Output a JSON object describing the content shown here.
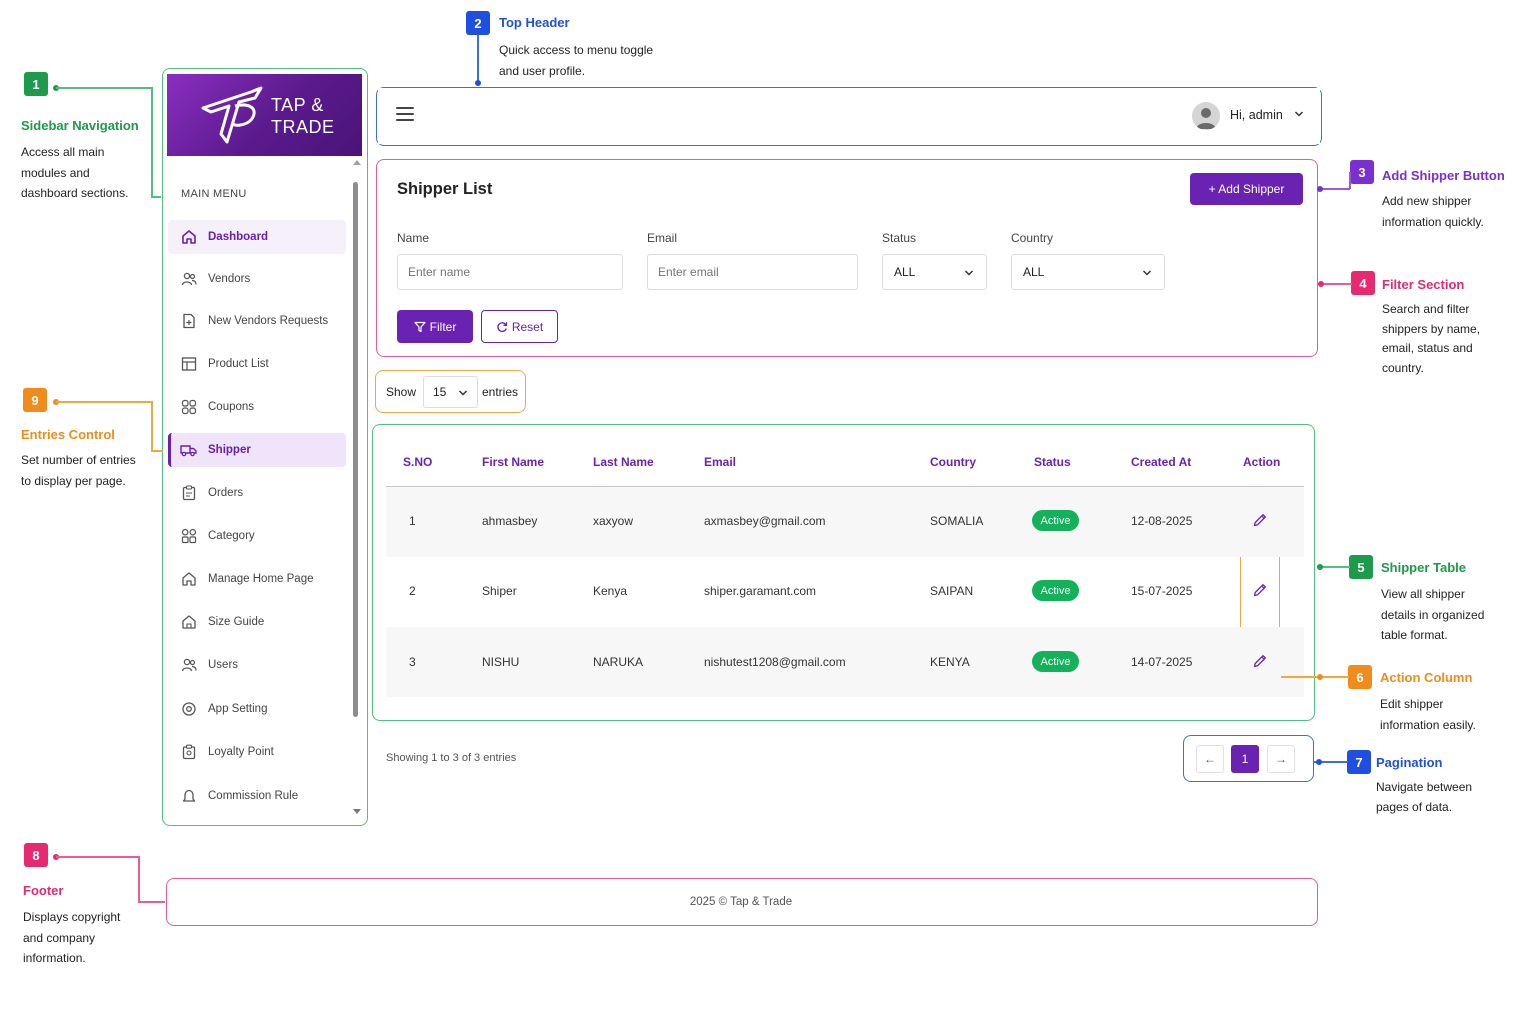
{
  "annotations": [
    {
      "num": "1",
      "title": "Sidebar Navigation",
      "desc": [
        "Access all main",
        "modules and",
        "dashboard sections."
      ],
      "color": "#1e9a4b"
    },
    {
      "num": "2",
      "title": "Top Header",
      "desc": [
        "Quick access to menu toggle",
        "and user profile."
      ],
      "color": "#1f4fe0"
    },
    {
      "num": "3",
      "title": "Add Shipper Button",
      "desc": [
        "Add new shipper",
        "information quickly."
      ],
      "color": "#7a2fd0"
    },
    {
      "num": "4",
      "title": "Filter Section",
      "desc": [
        "Search and filter",
        "shippers by name,",
        "email, status and",
        "country."
      ],
      "color": "#e8286f"
    },
    {
      "num": "5",
      "title": "Shipper Table",
      "desc": [
        "View all shipper",
        "details in organized",
        "table format."
      ],
      "color": "#1e9a4b"
    },
    {
      "num": "6",
      "title": "Action Column",
      "desc": [
        "Edit shipper",
        "information easily."
      ],
      "color": "#f08c1c"
    },
    {
      "num": "7",
      "title": "Pagination",
      "desc": [
        "Navigate between",
        "pages of data."
      ],
      "color": "#1f4fe0"
    },
    {
      "num": "8",
      "title": "Footer",
      "desc": [
        "Displays copyright",
        "and company",
        "information."
      ],
      "color": "#e8286f"
    },
    {
      "num": "9",
      "title": "Entries Control",
      "desc": [
        "Set number of entries",
        "to display per page."
      ],
      "color": "#f08c1c"
    }
  ],
  "sidebar": {
    "logo_line1": "TAP &",
    "logo_line2": "TRADE",
    "menu_title": "MAIN MENU",
    "items": [
      {
        "label": "Dashboard",
        "icon": "home-icon"
      },
      {
        "label": "Vendors",
        "icon": "users-icon"
      },
      {
        "label": "New Vendors Requests",
        "icon": "file-plus-icon"
      },
      {
        "label": "Product List",
        "icon": "table-icon"
      },
      {
        "label": "Coupons",
        "icon": "coupon-icon"
      },
      {
        "label": "Shipper",
        "icon": "truck-icon"
      },
      {
        "label": "Orders",
        "icon": "clipboard-icon"
      },
      {
        "label": "Category",
        "icon": "grid-icon"
      },
      {
        "label": "Manage Home Page",
        "icon": "home-icon"
      },
      {
        "label": "Size Guide",
        "icon": "ruler-icon"
      },
      {
        "label": "Users",
        "icon": "users-icon"
      },
      {
        "label": "App Setting",
        "icon": "gear-icon"
      },
      {
        "label": "Loyalty Point",
        "icon": "badge-icon"
      },
      {
        "label": "Commission Rule",
        "icon": "bell-icon"
      }
    ]
  },
  "header": {
    "greeting": "Hi, admin"
  },
  "filters": {
    "title": "Shipper List",
    "add_button": "+ Add Shipper",
    "name_label": "Name",
    "name_placeholder": "Enter name",
    "email_label": "Email",
    "email_placeholder": "Enter email",
    "status_label": "Status",
    "status_value": "ALL",
    "country_label": "Country",
    "country_value": "ALL",
    "filter_button": "Filter",
    "reset_button": "Reset"
  },
  "entries": {
    "show": "Show",
    "value": "15",
    "suffix": "entries"
  },
  "table": {
    "columns": [
      "S.NO",
      "First Name",
      "Last Name",
      "Email",
      "Country",
      "Status",
      "Created At",
      "Action"
    ],
    "rows": [
      {
        "sno": "1",
        "first": "ahmasbey",
        "last": "xaxyow",
        "email": "axmasbey@gmail.com",
        "country": "SOMALIA",
        "status": "Active",
        "created": "12-08-2025"
      },
      {
        "sno": "2",
        "first": "Shiper",
        "last": "Kenya",
        "email": "shiper.garamant.com",
        "country": "SAIPAN",
        "status": "Active",
        "created": "15-07-2025"
      },
      {
        "sno": "3",
        "first": "NISHU",
        "last": "NARUKA",
        "email": "nishutest1208@gmail.com",
        "country": "KENYA",
        "status": "Active",
        "created": "14-07-2025"
      }
    ]
  },
  "pagination": {
    "summary": "Showing 1 to 3 of 3 entries",
    "prev": "←",
    "current": "1",
    "next": "→"
  },
  "footer": {
    "text": "2025 © Tap & Trade"
  },
  "colors": {
    "brand": "#6a22b3",
    "active_status": "#13b25a"
  }
}
